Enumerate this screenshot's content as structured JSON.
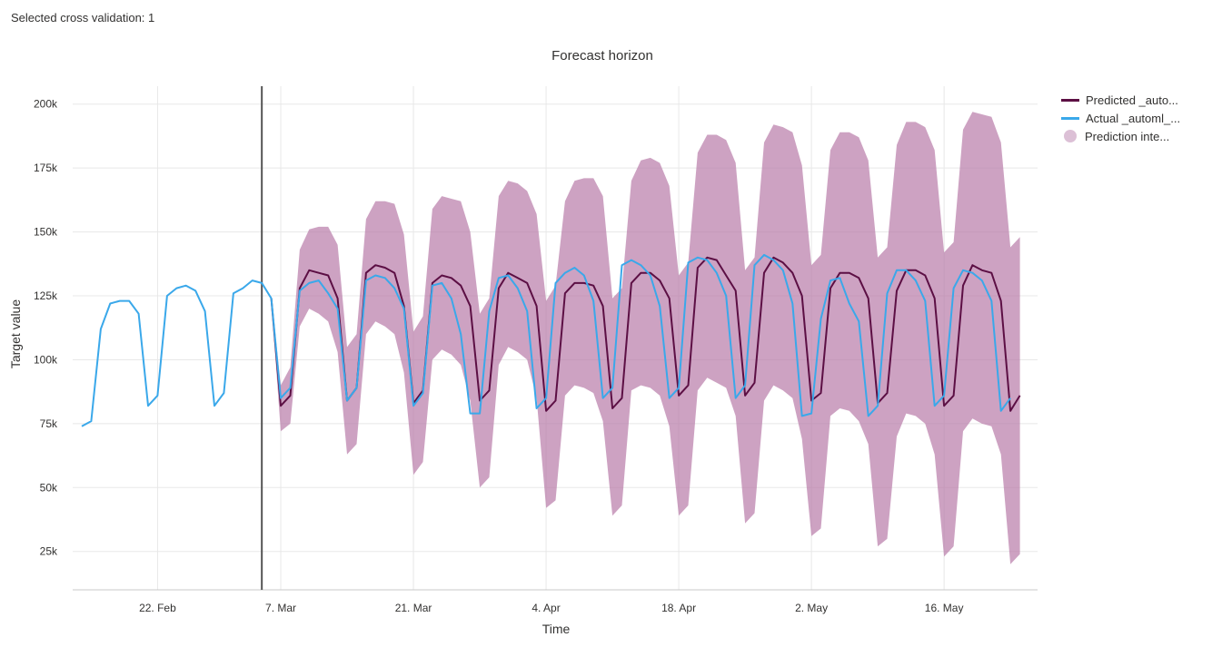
{
  "header": {
    "cross_validation_label": "Selected cross validation: 1"
  },
  "legend": {
    "predicted_label": "Predicted _auto...",
    "actual_label": "Actual _automl_...",
    "interval_label": "Prediction inte..."
  },
  "colors": {
    "predicted": "#5c0f44",
    "actual": "#3aa8ea",
    "interval": "#b87aa8",
    "cutoff": "#555555",
    "grid": "#e8e8e8"
  },
  "chart_data": {
    "type": "line",
    "title": "Forecast horizon",
    "xlabel": "Time",
    "ylabel": "Target value",
    "x_start": "2021-02-14",
    "x_step_days": 1,
    "cutoff_date": "2021-03-05",
    "ylim": [
      10000,
      207000
    ],
    "y_ticks": [
      25000,
      50000,
      75000,
      100000,
      125000,
      150000,
      175000,
      200000
    ],
    "y_tick_labels": [
      "25k",
      "50k",
      "75k",
      "100k",
      "125k",
      "150k",
      "175k",
      "200k"
    ],
    "x_ticks": [
      "2021-02-22",
      "2021-03-07",
      "2021-03-21",
      "2021-04-04",
      "2021-04-18",
      "2021-05-02",
      "2021-05-16"
    ],
    "x_tick_labels": [
      "22. Feb",
      "7. Mar",
      "21. Mar",
      "4. Apr",
      "18. Apr",
      "2. May",
      "16. May"
    ],
    "grid": true,
    "legend_position": "top-right",
    "series": [
      {
        "name": "Actual _automl_...",
        "values": [
          74000,
          76000,
          112000,
          122000,
          123000,
          123000,
          118000,
          82000,
          86000,
          125000,
          128000,
          129000,
          127000,
          119000,
          82000,
          87000,
          126000,
          128000,
          131000,
          130000,
          124000,
          85000,
          89000,
          127000,
          130000,
          131000,
          126000,
          120000,
          84000,
          89000,
          131000,
          133000,
          132000,
          128000,
          120000,
          82000,
          87000,
          129000,
          130000,
          124000,
          110000,
          79000,
          79000,
          119000,
          132000,
          133000,
          128000,
          119000,
          81000,
          85000,
          130000,
          134000,
          136000,
          133000,
          123000,
          85000,
          89000,
          137000,
          139000,
          137000,
          133000,
          121000,
          85000,
          89000,
          138000,
          140000,
          139000,
          134000,
          125000,
          85000,
          90000,
          137000,
          141000,
          139000,
          135000,
          122000,
          78000,
          79000,
          116000,
          131000,
          132000,
          122000,
          115000,
          78000,
          82000,
          126000,
          135000,
          135000,
          131000,
          123000,
          82000,
          86000,
          128000,
          135000,
          134000,
          131000,
          123000,
          80000,
          85000
        ]
      },
      {
        "name": "Predicted _auto...",
        "values": [
          null,
          null,
          null,
          null,
          null,
          null,
          null,
          null,
          null,
          null,
          null,
          null,
          null,
          null,
          null,
          null,
          null,
          null,
          null,
          null,
          124000,
          82000,
          86000,
          128000,
          135000,
          134000,
          133000,
          124000,
          84000,
          89000,
          134000,
          137000,
          136000,
          134000,
          121000,
          83000,
          88000,
          130000,
          133000,
          132000,
          129000,
          121000,
          84000,
          88000,
          128000,
          134000,
          132000,
          130000,
          121000,
          80000,
          84000,
          126000,
          130000,
          130000,
          129000,
          121000,
          81000,
          85000,
          130000,
          134000,
          134000,
          131000,
          124000,
          86000,
          90000,
          136000,
          140000,
          139000,
          133000,
          127000,
          86000,
          91000,
          134000,
          140000,
          138000,
          134000,
          125000,
          84000,
          87000,
          128000,
          134000,
          134000,
          132000,
          124000,
          83000,
          87000,
          127000,
          135000,
          135000,
          133000,
          124000,
          82000,
          86000,
          129000,
          137000,
          135000,
          134000,
          123000,
          80000,
          86000
        ]
      }
    ],
    "interval": {
      "name": "Prediction inte...",
      "lower": [
        null,
        null,
        null,
        null,
        null,
        null,
        null,
        null,
        null,
        null,
        null,
        null,
        null,
        null,
        null,
        null,
        null,
        null,
        null,
        null,
        123000,
        72000,
        75000,
        113000,
        120000,
        118000,
        115000,
        103000,
        63000,
        67000,
        110000,
        115000,
        113000,
        110000,
        95000,
        55000,
        60000,
        100000,
        104000,
        102000,
        98000,
        84000,
        50000,
        54000,
        98000,
        105000,
        103000,
        100000,
        85000,
        42000,
        45000,
        86000,
        90000,
        89000,
        87000,
        76000,
        39000,
        43000,
        88000,
        90000,
        89000,
        86000,
        74000,
        39000,
        43000,
        88000,
        93000,
        91000,
        89000,
        78000,
        36000,
        40000,
        84000,
        90000,
        88000,
        85000,
        69000,
        31000,
        34000,
        78000,
        81000,
        80000,
        76000,
        67000,
        27000,
        30000,
        70000,
        79000,
        78000,
        75000,
        63000,
        23000,
        27000,
        72000,
        77000,
        75000,
        74000,
        63000,
        20000,
        24000
      ],
      "upper": [
        null,
        null,
        null,
        null,
        null,
        null,
        null,
        null,
        null,
        null,
        null,
        null,
        null,
        null,
        null,
        null,
        null,
        null,
        null,
        null,
        125000,
        90000,
        97000,
        143000,
        151000,
        152000,
        152000,
        145000,
        105000,
        110000,
        155000,
        162000,
        162000,
        161000,
        149000,
        111000,
        117000,
        159000,
        164000,
        163000,
        162000,
        150000,
        118000,
        124000,
        164000,
        170000,
        169000,
        166000,
        157000,
        123000,
        129000,
        162000,
        170000,
        171000,
        171000,
        164000,
        124000,
        128000,
        170000,
        178000,
        179000,
        177000,
        168000,
        133000,
        138000,
        181000,
        188000,
        188000,
        186000,
        177000,
        135000,
        140000,
        185000,
        192000,
        191000,
        189000,
        176000,
        137000,
        141000,
        182000,
        189000,
        189000,
        187000,
        178000,
        140000,
        144000,
        184000,
        193000,
        193000,
        191000,
        182000,
        142000,
        146000,
        190000,
        197000,
        196000,
        195000,
        185000,
        144000,
        148000
      ]
    }
  }
}
